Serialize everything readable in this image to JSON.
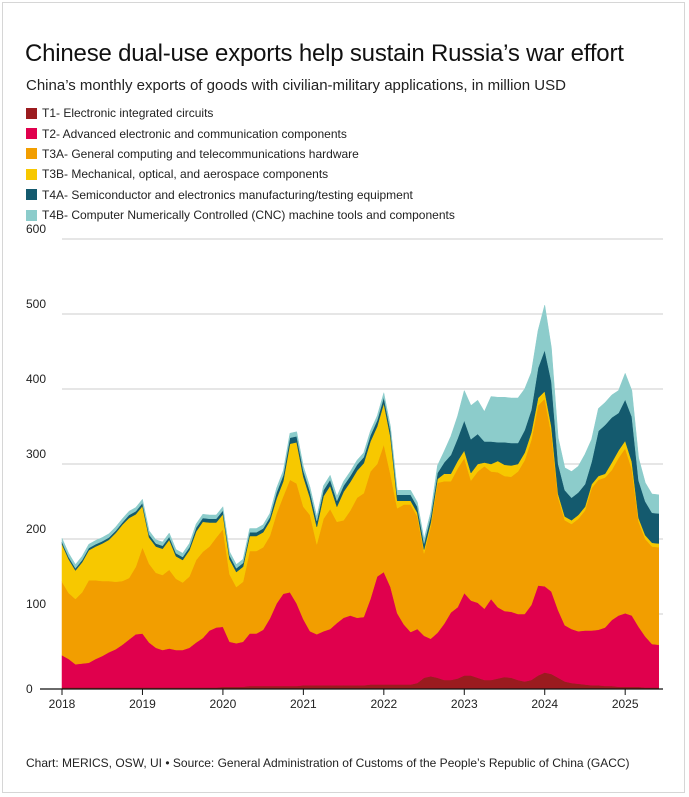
{
  "title": "Chinese dual-use exports help sustain Russia’s war effort",
  "subtitle": "China’s monthly exports of goods with civilian-military applications, in million USD",
  "source": "Chart: MERICS, OSW, UI • Source: General Administration of Customs of the People’s Republic of China (GACC)",
  "chart_data": {
    "type": "area",
    "stacked": true,
    "ylim": [
      0,
      600
    ],
    "yticks": [
      0,
      100,
      200,
      300,
      400,
      500,
      600
    ],
    "xlim": [
      2018,
      2025.47
    ],
    "xticks": [
      "2018",
      "2019",
      "2020",
      "2021",
      "2022",
      "2023",
      "2024",
      "2025"
    ],
    "grid": true,
    "legend_position": "top",
    "x": [
      2018.0,
      2018.083,
      2018.167,
      2018.25,
      2018.333,
      2018.417,
      2018.5,
      2018.583,
      2018.667,
      2018.75,
      2018.833,
      2018.917,
      2019.0,
      2019.083,
      2019.167,
      2019.25,
      2019.333,
      2019.417,
      2019.5,
      2019.583,
      2019.667,
      2019.75,
      2019.833,
      2019.917,
      2020.0,
      2020.083,
      2020.167,
      2020.25,
      2020.333,
      2020.417,
      2020.5,
      2020.583,
      2020.667,
      2020.75,
      2020.833,
      2020.917,
      2021.0,
      2021.083,
      2021.167,
      2021.25,
      2021.333,
      2021.417,
      2021.5,
      2021.583,
      2021.667,
      2021.75,
      2021.833,
      2021.917,
      2022.0,
      2022.083,
      2022.167,
      2022.25,
      2022.333,
      2022.417,
      2022.5,
      2022.583,
      2022.667,
      2022.75,
      2022.833,
      2022.917,
      2023.0,
      2023.083,
      2023.167,
      2023.25,
      2023.333,
      2023.417,
      2023.5,
      2023.583,
      2023.667,
      2023.75,
      2023.833,
      2023.917,
      2024.0,
      2024.083,
      2024.167,
      2024.25,
      2024.333,
      2024.417,
      2024.5,
      2024.583,
      2024.667,
      2024.75,
      2024.833,
      2024.917,
      2025.0,
      2025.083,
      2025.167,
      2025.25,
      2025.333,
      2025.417
    ],
    "series": [
      {
        "name": "T1- Electronic integrated circuits",
        "color": "#9b1b1f",
        "values": [
          2,
          2,
          2,
          2,
          2,
          2,
          2,
          2,
          2,
          2,
          2,
          2,
          2,
          2,
          2,
          2,
          2,
          2,
          2,
          2,
          2,
          2,
          2,
          2,
          3,
          3,
          3,
          3,
          4,
          4,
          4,
          4,
          4,
          4,
          4,
          4,
          5,
          5,
          5,
          5,
          5,
          5,
          5,
          5,
          5,
          5,
          6,
          6,
          6,
          6,
          6,
          6,
          6,
          8,
          15,
          17,
          15,
          12,
          12,
          14,
          18,
          18,
          15,
          12,
          12,
          14,
          16,
          15,
          12,
          10,
          12,
          18,
          22,
          20,
          15,
          10,
          8,
          7,
          6,
          5,
          5,
          4,
          4,
          3,
          3,
          3,
          3,
          2,
          2,
          2
        ]
      },
      {
        "name": "T2- Advanced electronic and communication components",
        "color": "#e0004d",
        "values": [
          43,
          38,
          31,
          32,
          33,
          38,
          42,
          47,
          51,
          57,
          64,
          71,
          72,
          60,
          53,
          50,
          52,
          50,
          50,
          53,
          60,
          66,
          76,
          80,
          80,
          60,
          58,
          60,
          70,
          70,
          75,
          90,
          110,
          123,
          125,
          110,
          88,
          72,
          68,
          72,
          75,
          83,
          90,
          93,
          90,
          91,
          114,
          144,
          150,
          130,
          95,
          80,
          70,
          72,
          56,
          50,
          60,
          75,
          90,
          95,
          110,
          100,
          100,
          95,
          108,
          95,
          88,
          88,
          88,
          90,
          100,
          120,
          115,
          110,
          90,
          75,
          72,
          70,
          72,
          73,
          74,
          78,
          88,
          95,
          98,
          95,
          80,
          68,
          58,
          57
        ]
      },
      {
        "name": "T3A- General computing and telecommunications hardware",
        "color": "#f29e00",
        "values": [
          98,
          88,
          87,
          95,
          110,
          105,
          100,
          95,
          90,
          85,
          82,
          90,
          115,
          105,
          100,
          100,
          105,
          95,
          90,
          95,
          110,
          115,
          112,
          120,
          130,
          90,
          75,
          80,
          110,
          110,
          110,
          110,
          120,
          130,
          150,
          160,
          150,
          155,
          120,
          150,
          160,
          135,
          130,
          140,
          160,
          165,
          170,
          150,
          170,
          150,
          140,
          160,
          170,
          150,
          110,
          150,
          200,
          190,
          175,
          185,
          180,
          160,
          175,
          190,
          170,
          180,
          180,
          180,
          190,
          205,
          220,
          240,
          250,
          210,
          150,
          140,
          140,
          150,
          160,
          190,
          200,
          200,
          200,
          210,
          220,
          195,
          140,
          130,
          130,
          130
        ]
      },
      {
        "name": "T3B- Mechanical, optical, and aerospace components",
        "color": "#f7c800",
        "values": [
          50,
          45,
          38,
          40,
          40,
          45,
          50,
          55,
          65,
          75,
          80,
          70,
          55,
          35,
          35,
          35,
          40,
          30,
          30,
          35,
          38,
          40,
          32,
          20,
          20,
          20,
          20,
          20,
          20,
          20,
          20,
          20,
          20,
          20,
          48,
          55,
          40,
          23,
          23,
          30,
          31,
          20,
          38,
          38,
          36,
          40,
          40,
          50,
          55,
          50,
          10,
          5,
          5,
          5,
          5,
          5,
          5,
          10,
          10,
          10,
          10,
          10,
          10,
          5,
          10,
          15,
          15,
          15,
          10,
          10,
          10,
          10,
          10,
          10,
          5,
          5,
          5,
          5,
          5,
          5,
          5,
          5,
          10,
          10,
          10,
          10,
          5,
          5,
          5,
          5
        ]
      },
      {
        "name": "T4A- Semiconductor and electronics manufacturing/testing equipment",
        "color": "#145a6e",
        "values": [
          3,
          3,
          3,
          3,
          3,
          3,
          3,
          3,
          3,
          3,
          4,
          4,
          4,
          4,
          4,
          4,
          4,
          4,
          4,
          4,
          5,
          5,
          5,
          5,
          5,
          5,
          5,
          5,
          5,
          5,
          5,
          5,
          8,
          8,
          8,
          8,
          8,
          8,
          8,
          8,
          8,
          8,
          8,
          8,
          8,
          8,
          8,
          8,
          8,
          8,
          8,
          8,
          8,
          8,
          8,
          8,
          8,
          15,
          25,
          30,
          40,
          45,
          40,
          28,
          30,
          25,
          30,
          30,
          28,
          30,
          30,
          40,
          55,
          60,
          40,
          35,
          30,
          30,
          30,
          30,
          60,
          65,
          60,
          50,
          55,
          60,
          50,
          45,
          40,
          40
        ]
      },
      {
        "name": "T4B- Computer Numerically Controlled (CNC) machine tools and components",
        "color": "#8ccccb",
        "values": [
          5,
          5,
          5,
          5,
          5,
          5,
          5,
          5,
          5,
          5,
          5,
          5,
          5,
          5,
          5,
          5,
          5,
          5,
          5,
          5,
          5,
          5,
          5,
          5,
          5,
          5,
          5,
          5,
          5,
          5,
          5,
          5,
          6,
          6,
          6,
          6,
          6,
          6,
          6,
          6,
          6,
          6,
          6,
          6,
          6,
          6,
          6,
          6,
          6,
          6,
          6,
          6,
          6,
          6,
          6,
          6,
          10,
          15,
          25,
          30,
          40,
          45,
          45,
          40,
          60,
          60,
          60,
          60,
          60,
          55,
          50,
          50,
          60,
          45,
          35,
          30,
          35,
          35,
          40,
          30,
          30,
          30,
          30,
          30,
          35,
          35,
          30,
          25,
          25,
          25
        ]
      }
    ]
  }
}
